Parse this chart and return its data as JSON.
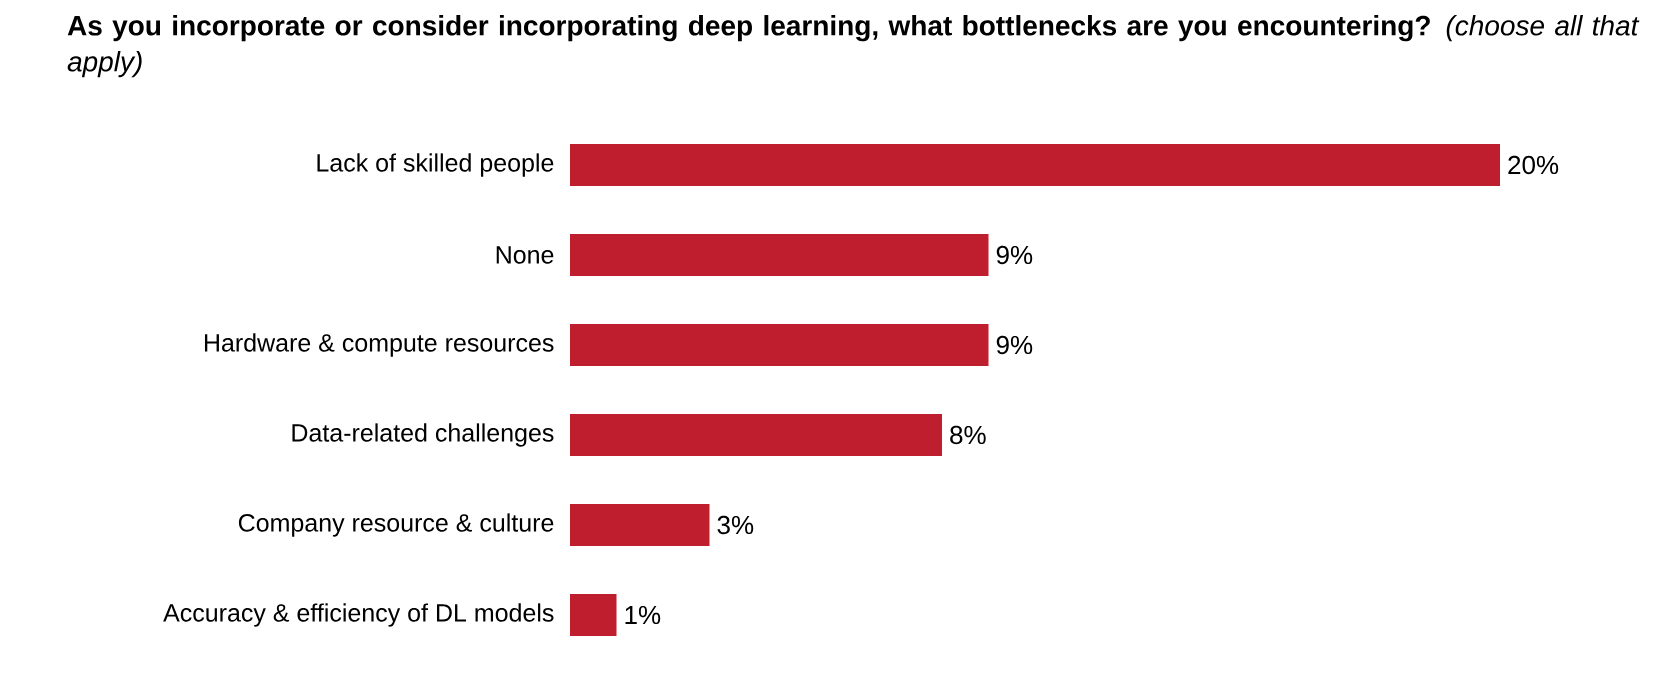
{
  "chart_data": {
    "type": "bar",
    "orientation": "horizontal",
    "title": "**As you incorporate or consider incorporating deep learning, what bottlenecks are you encountering?** *(choose all that apply)*",
    "categories": [
      "Lack of skilled people",
      "None",
      "Hardware & compute resources",
      "Data-related challenges",
      "Company resource & culture",
      "Accuracy & efficiency of DL models"
    ],
    "values": [
      20,
      9,
      9,
      8,
      3,
      1
    ],
    "value_labels": [
      "20%",
      "9%",
      "9%",
      "8%",
      "3%",
      "1%"
    ],
    "color": "#be1e2d"
  }
}
